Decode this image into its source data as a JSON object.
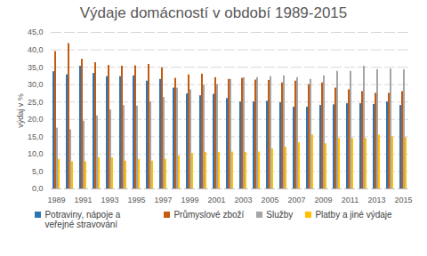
{
  "chart_data": {
    "type": "bar",
    "title": "Výdaje domácností v období 1989-2015",
    "y_label": "výdaj v %",
    "categories": [
      "1989",
      null,
      "1991",
      null,
      "1993",
      null,
      "1995",
      null,
      "1997",
      null,
      "1999",
      null,
      "2001",
      null,
      "2003",
      null,
      "2005",
      null,
      "2007",
      null,
      "2009",
      null,
      "2011",
      null,
      "2013",
      null,
      "2015"
    ],
    "series": [
      {
        "name": "Potraviny, nápoje a veřejné stravování",
        "color": "#2e75b6",
        "values": [
          33.7,
          32.8,
          35.3,
          33.2,
          32.3,
          32.3,
          32.5,
          31.0,
          31.5,
          29.0,
          27.3,
          26.8,
          27.2,
          26.0,
          25.0,
          25.0,
          25.2,
          24.8,
          23.5,
          23.5,
          24.0,
          24.2,
          24.5,
          24.5,
          24.3,
          25.0,
          24.0
        ]
      },
      {
        "name": "Průmyslové zboží",
        "color": "#c55a11",
        "values": [
          39.5,
          41.8,
          37.3,
          36.3,
          35.5,
          35.3,
          35.4,
          35.8,
          34.8,
          31.8,
          32.8,
          33.0,
          32.0,
          31.5,
          31.8,
          31.3,
          31.2,
          30.5,
          31.0,
          30.0,
          30.5,
          29.0,
          28.5,
          28.0,
          27.5,
          27.5,
          28.0
        ]
      },
      {
        "name": "Služby",
        "color": "#a5a5a5",
        "values": [
          17.5,
          17.0,
          19.5,
          21.0,
          22.7,
          24.0,
          23.8,
          25.0,
          26.3,
          29.0,
          28.5,
          29.8,
          30.0,
          31.5,
          32.0,
          32.0,
          32.3,
          32.5,
          32.0,
          31.5,
          32.5,
          33.8,
          33.8,
          35.3,
          34.3,
          34.5,
          34.3
        ]
      },
      {
        "name": "Platby a jiné výdaje",
        "color": "#ffc000",
        "values": [
          8.5,
          7.8,
          7.8,
          9.0,
          8.9,
          8.0,
          8.5,
          8.0,
          8.5,
          9.5,
          10.2,
          10.5,
          10.5,
          10.6,
          10.5,
          10.6,
          11.5,
          12.0,
          13.3,
          15.5,
          13.0,
          14.5,
          14.5,
          14.5,
          15.5,
          15.0,
          14.8
        ]
      }
    ],
    "ylim": [
      0,
      45
    ],
    "yticks": [
      {
        "value": 0,
        "label": "0,0"
      },
      {
        "value": 5,
        "label": "5,0"
      },
      {
        "value": 10,
        "label": "10,0"
      },
      {
        "value": 15,
        "label": "15,0"
      },
      {
        "value": 20,
        "label": "20,0"
      },
      {
        "value": 25,
        "label": "25,0"
      },
      {
        "value": 30,
        "label": "30,0"
      },
      {
        "value": 35,
        "label": "35,0"
      },
      {
        "value": 40,
        "label": "40,0"
      },
      {
        "value": 45,
        "label": "45,0"
      }
    ],
    "grid": true,
    "legend": "bottom"
  }
}
